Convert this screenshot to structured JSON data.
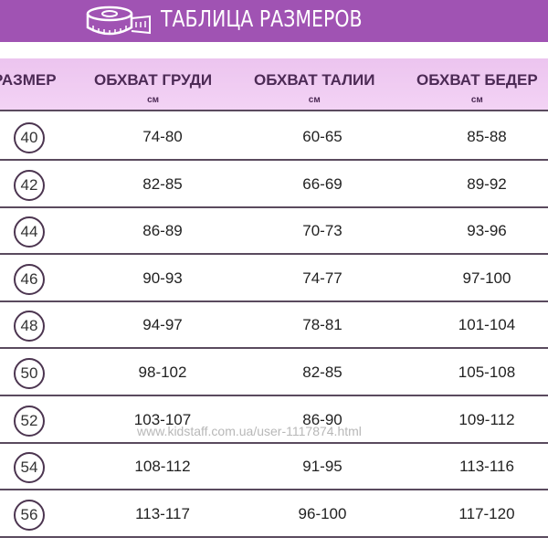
{
  "banner": {
    "title": "ТАБЛИЦА РАЗМЕРОВ",
    "icon": "measuring-tape-icon",
    "color": "#a053b3"
  },
  "table": {
    "headers": [
      {
        "label": "РАЗМЕР",
        "unit": ""
      },
      {
        "label": "ОБХВАТ ГРУДИ",
        "unit": "см"
      },
      {
        "label": "ОБХВАТ ТАЛИИ",
        "unit": "см"
      },
      {
        "label": "ОБХВАТ БЕДЕР",
        "unit": "см"
      }
    ],
    "rows": [
      [
        "40",
        "74-80",
        "60-65",
        "85-88"
      ],
      [
        "42",
        "82-85",
        "66-69",
        "89-92"
      ],
      [
        "44",
        "86-89",
        "70-73",
        "93-96"
      ],
      [
        "46",
        "90-93",
        "74-77",
        "97-100"
      ],
      [
        "48",
        "94-97",
        "78-81",
        "101-104"
      ],
      [
        "50",
        "98-102",
        "82-85",
        "105-108"
      ],
      [
        "52",
        "103-107",
        "86-90",
        "109-112"
      ],
      [
        "54",
        "108-112",
        "91-95",
        "113-116"
      ],
      [
        "56",
        "113-117",
        "96-100",
        "117-120"
      ]
    ]
  },
  "watermark": "www.kidstaff.com.ua/user-1117874.html"
}
